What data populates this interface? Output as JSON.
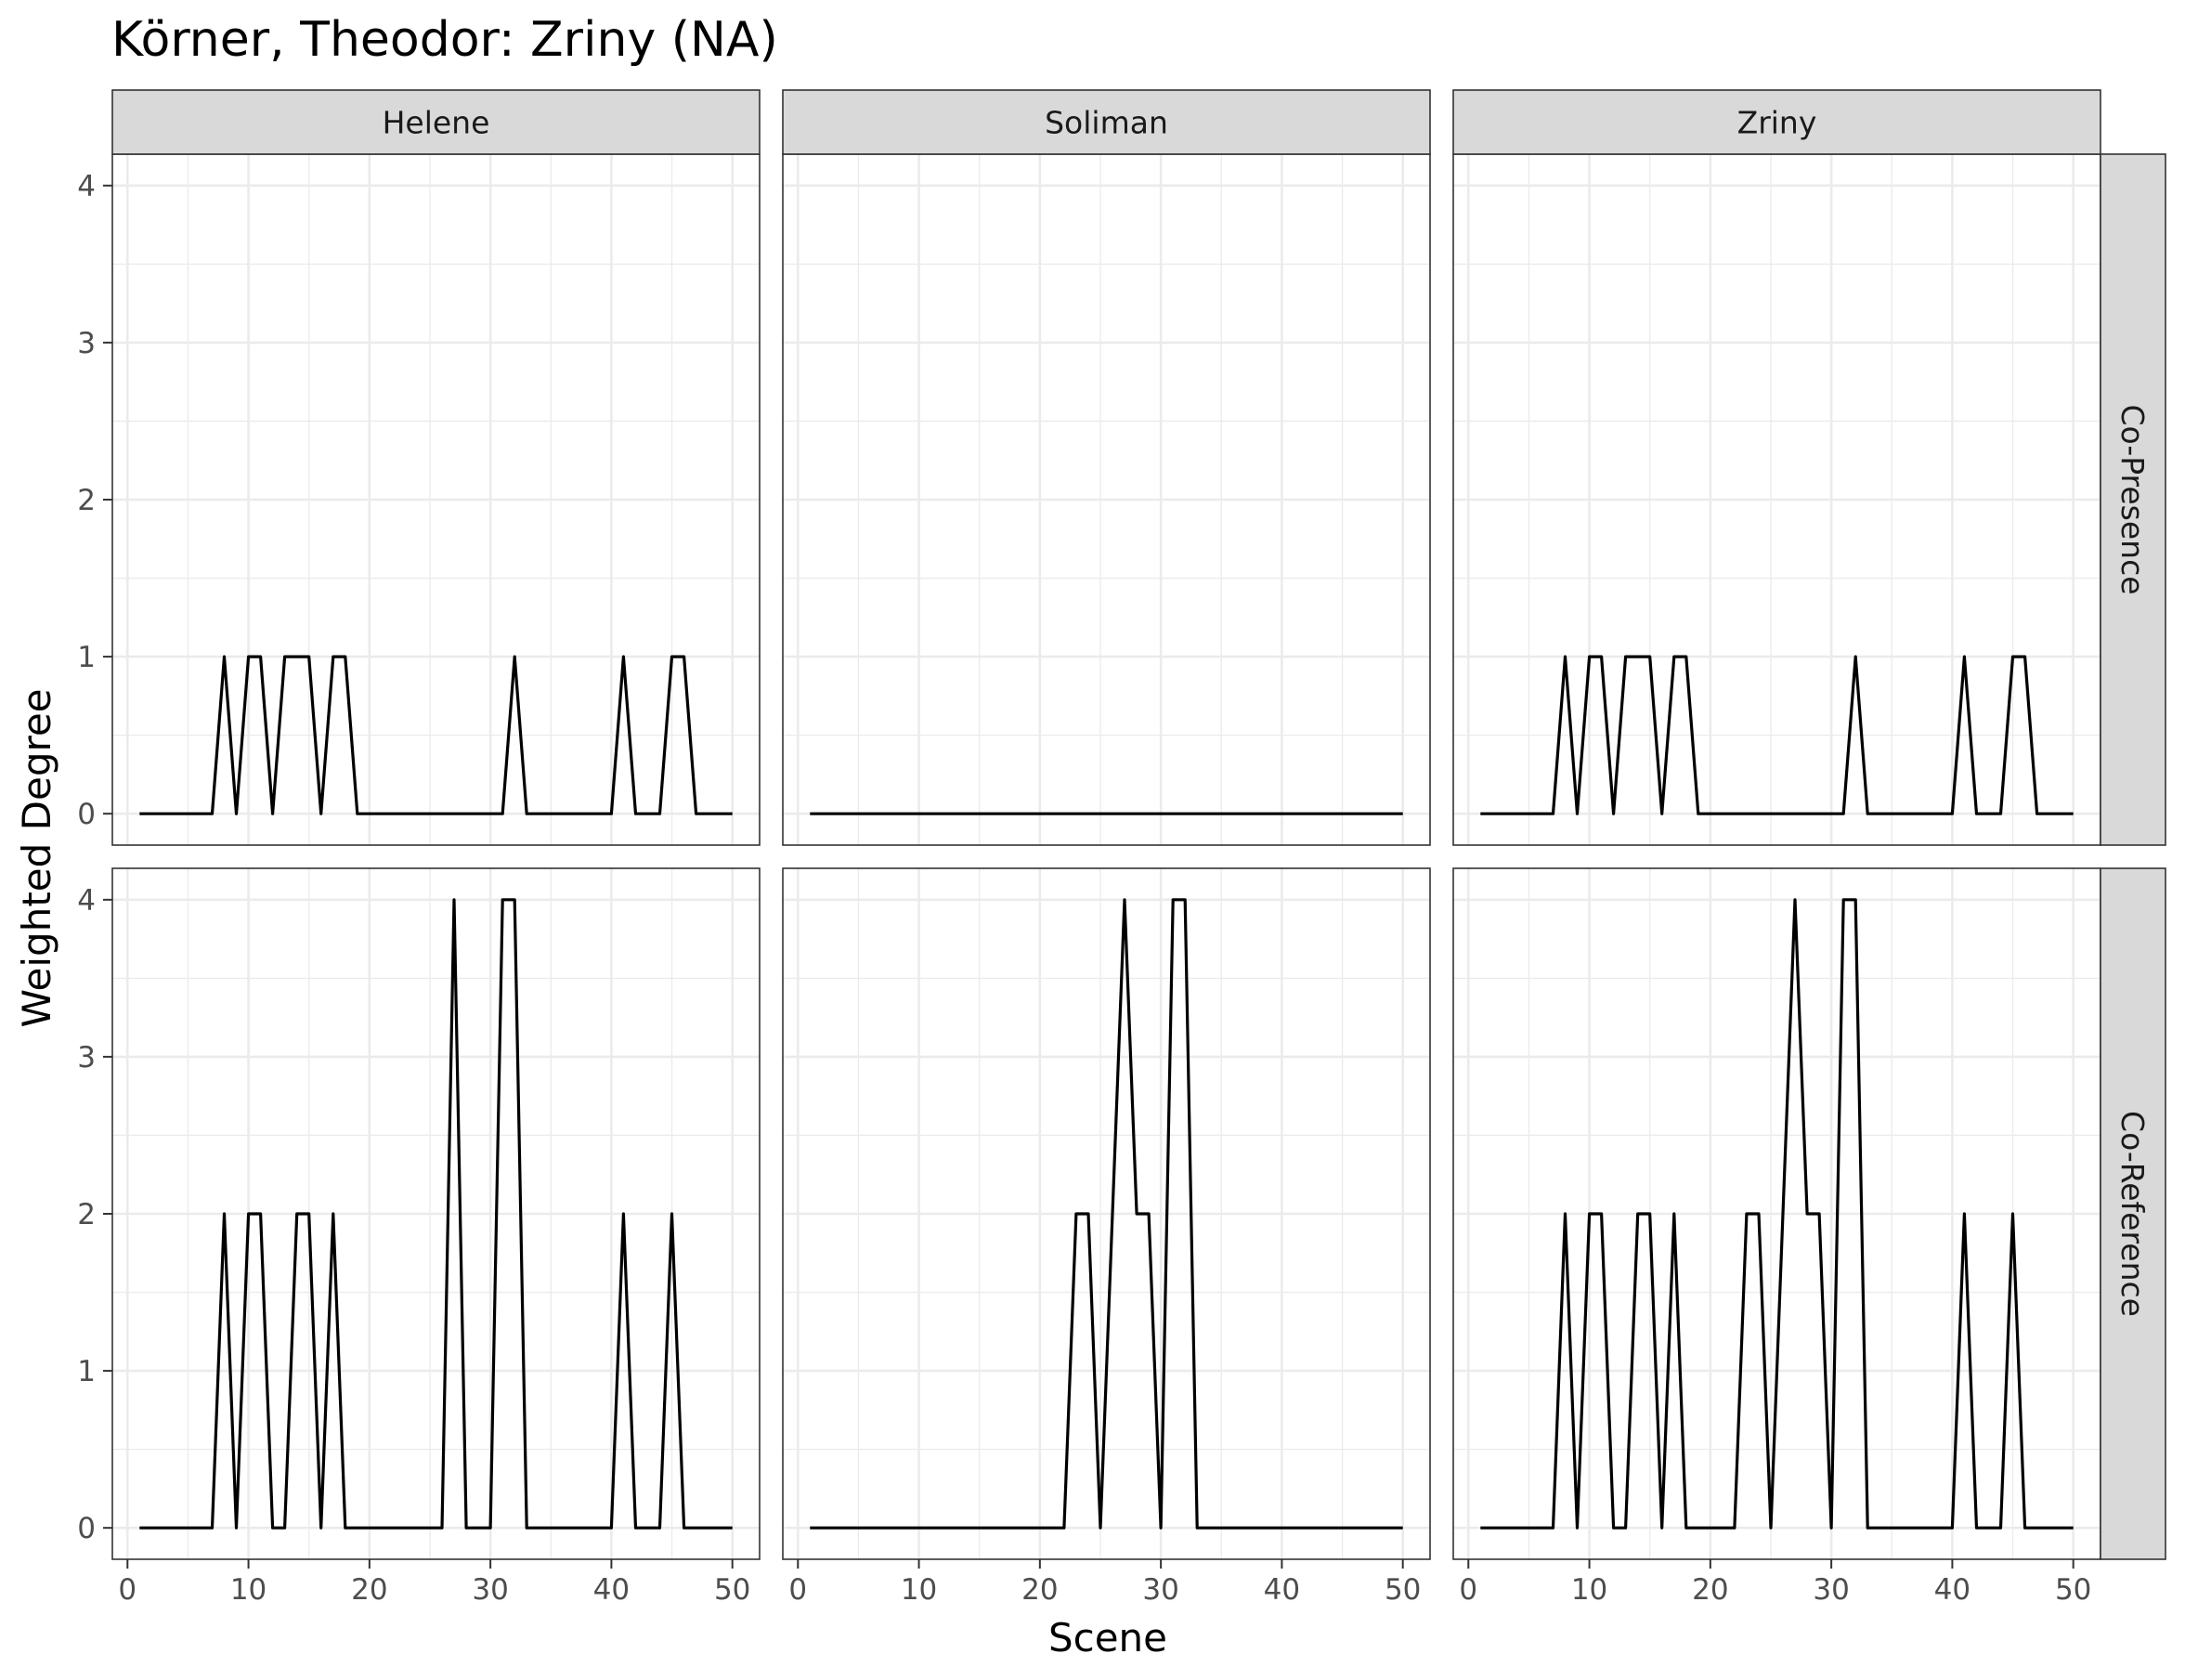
{
  "chart_data": {
    "type": "line",
    "title": "Körner, Theodor: Zriny (NA)",
    "xlabel": "Scene",
    "ylabel": "Weighted Degree",
    "xlim": [
      0,
      50
    ],
    "ylim": [
      0,
      4
    ],
    "x_ticks": [
      0,
      10,
      20,
      30,
      40,
      50
    ],
    "y_ticks": [
      0,
      1,
      2,
      3,
      4
    ],
    "grid": true,
    "facet_columns": [
      "Helene",
      "Soliman",
      "Zriny"
    ],
    "facet_rows": [
      "Co-Presence",
      "Co-Reference"
    ],
    "line_color": "#000000",
    "x": [
      1,
      2,
      3,
      4,
      5,
      6,
      7,
      8,
      9,
      10,
      11,
      12,
      13,
      14,
      15,
      16,
      17,
      18,
      19,
      20,
      21,
      22,
      23,
      24,
      25,
      26,
      27,
      28,
      29,
      30,
      31,
      32,
      33,
      34,
      35,
      36,
      37,
      38,
      39,
      40,
      41,
      42,
      43,
      44,
      45,
      46,
      47,
      48,
      49,
      50
    ],
    "panels": [
      {
        "row": "Co-Presence",
        "col": "Helene",
        "values": [
          0,
          0,
          0,
          0,
          0,
          0,
          0,
          1,
          0,
          1,
          1,
          0,
          1,
          1,
          1,
          0,
          1,
          1,
          0,
          0,
          0,
          0,
          0,
          0,
          0,
          0,
          0,
          0,
          0,
          0,
          0,
          1,
          0,
          0,
          0,
          0,
          0,
          0,
          0,
          0,
          1,
          0,
          0,
          0,
          1,
          1,
          0,
          0,
          0,
          0
        ]
      },
      {
        "row": "Co-Presence",
        "col": "Soliman",
        "values": [
          0,
          0,
          0,
          0,
          0,
          0,
          0,
          0,
          0,
          0,
          0,
          0,
          0,
          0,
          0,
          0,
          0,
          0,
          0,
          0,
          0,
          0,
          0,
          0,
          0,
          0,
          0,
          0,
          0,
          0,
          0,
          0,
          0,
          0,
          0,
          0,
          0,
          0,
          0,
          0,
          0,
          0,
          0,
          0,
          0,
          0,
          0,
          0,
          0,
          0
        ]
      },
      {
        "row": "Co-Presence",
        "col": "Zriny",
        "values": [
          0,
          0,
          0,
          0,
          0,
          0,
          0,
          1,
          0,
          1,
          1,
          0,
          1,
          1,
          1,
          0,
          1,
          1,
          0,
          0,
          0,
          0,
          0,
          0,
          0,
          0,
          0,
          0,
          0,
          0,
          0,
          1,
          0,
          0,
          0,
          0,
          0,
          0,
          0,
          0,
          1,
          0,
          0,
          0,
          1,
          1,
          0,
          0,
          0,
          0
        ]
      },
      {
        "row": "Co-Reference",
        "col": "Helene",
        "values": [
          0,
          0,
          0,
          0,
          0,
          0,
          0,
          2,
          0,
          2,
          2,
          0,
          0,
          2,
          2,
          0,
          2,
          0,
          0,
          0,
          0,
          0,
          0,
          0,
          0,
          0,
          4,
          0,
          0,
          0,
          4,
          4,
          0,
          0,
          0,
          0,
          0,
          0,
          0,
          0,
          2,
          0,
          0,
          0,
          2,
          0,
          0,
          0,
          0,
          0
        ]
      },
      {
        "row": "Co-Reference",
        "col": "Soliman",
        "values": [
          0,
          0,
          0,
          0,
          0,
          0,
          0,
          0,
          0,
          0,
          0,
          0,
          0,
          0,
          0,
          0,
          0,
          0,
          0,
          0,
          0,
          0,
          2,
          2,
          0,
          2,
          4,
          2,
          2,
          0,
          4,
          4,
          0,
          0,
          0,
          0,
          0,
          0,
          0,
          0,
          0,
          0,
          0,
          0,
          0,
          0,
          0,
          0,
          0,
          0
        ]
      },
      {
        "row": "Co-Reference",
        "col": "Zriny",
        "values": [
          0,
          0,
          0,
          0,
          0,
          0,
          0,
          2,
          0,
          2,
          2,
          0,
          0,
          2,
          2,
          0,
          2,
          0,
          0,
          0,
          0,
          0,
          2,
          2,
          0,
          2,
          4,
          2,
          2,
          0,
          4,
          4,
          0,
          0,
          0,
          0,
          0,
          0,
          0,
          0,
          2,
          0,
          0,
          0,
          2,
          0,
          0,
          0,
          0,
          0
        ]
      }
    ]
  }
}
